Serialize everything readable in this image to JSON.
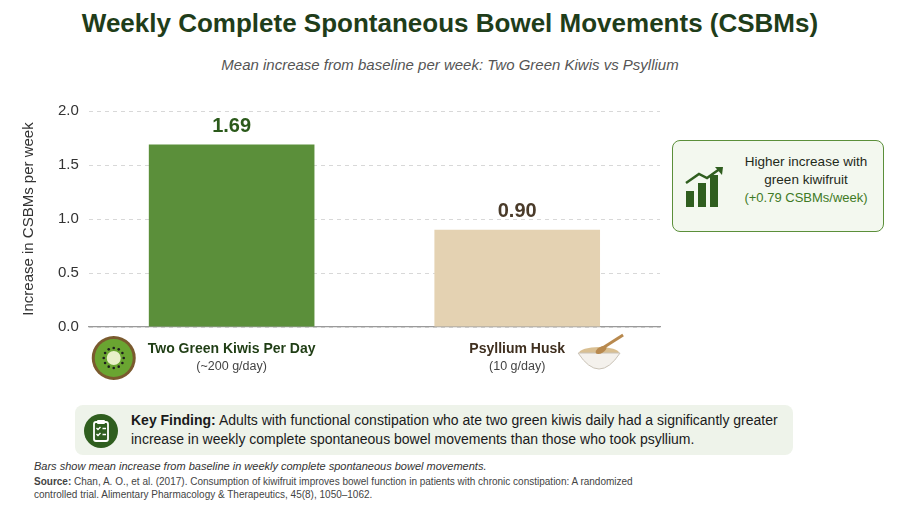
{
  "chart_data": {
    "type": "bar",
    "title": "Weekly Complete Spontaneous Bowel Movements (CSBMs)",
    "subtitle": "Mean increase from baseline per week: Two Green Kiwis vs Psyllium",
    "y_label": "Increase in CSBMs per week",
    "categories": [
      "Two Green Kiwis Per Day",
      "Psyllium Husk"
    ],
    "category_notes": [
      "(~200 g/day)",
      "(10 g/day)"
    ],
    "values": [
      1.69,
      0.9
    ],
    "value_labels": [
      "1.69",
      "0.90"
    ],
    "colors": [
      "#5b8f3a",
      "#e4d2b2"
    ],
    "ylim": [
      0,
      2
    ],
    "yticks": [
      {
        "value": 0,
        "label": "0.0"
      },
      {
        "value": 0.5,
        "label": "0.5"
      },
      {
        "value": 1,
        "label": "1.0"
      },
      {
        "value": 1.5,
        "label": "1.5"
      },
      {
        "value": 2,
        "label": "2.0"
      }
    ],
    "grid": true,
    "data_labels": true,
    "callout": {
      "text": "Higher increase with green kiwifruit",
      "note": "(+0.79 CSBMs/week)"
    },
    "key_finding": {
      "label": "Key Finding:",
      "text": "Adults with functional constipation who ate two green kiwis daily had a significantly greater increase in weekly complete spontaneous bowel movements than those who took psyllium."
    },
    "footnote": "Bars show mean increase from baseline in weekly complete spontaneous bowel movements.",
    "source": {
      "label": "Source:",
      "text": "Chan, A. O., et al. (2017). Consumption of kiwifruit improves bowel function in patients with chronic constipation: A randomized controlled trial. Alimentary Pharmacology & Therapeutics, 45(8), 1050–1062."
    }
  }
}
